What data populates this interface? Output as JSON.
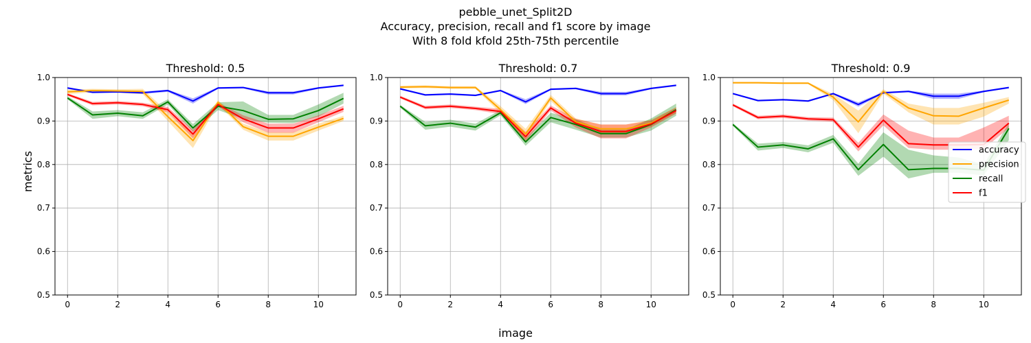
{
  "figure": {
    "title_lines": [
      "pebble_unet_Split2D",
      "Accuracy, precision, recall and f1 score by image",
      "With 8 fold kfold 25th-75th percentile"
    ],
    "xlabel": "image",
    "ylabel": "metrics"
  },
  "colors": {
    "accuracy": "#0000ff",
    "precision": "#ffa500",
    "recall": "#008000",
    "f1": "#ff0000",
    "grid": "#b0b0b0"
  },
  "legend": {
    "placement": "right, on third panel",
    "entries": [
      "accuracy",
      "precision",
      "recall",
      "f1"
    ]
  },
  "chart_data": [
    {
      "type": "line",
      "title": "Threshold: 0.5",
      "x": [
        0,
        1,
        2,
        3,
        4,
        5,
        6,
        7,
        8,
        9,
        10,
        11
      ],
      "xticks": [
        0,
        2,
        4,
        6,
        8,
        10
      ],
      "yticks": [
        0.5,
        0.6,
        0.7,
        0.8,
        0.9,
        1.0
      ],
      "xlim": [
        -0.5,
        11.5
      ],
      "ylim": [
        0.5,
        1.0
      ],
      "grid": true,
      "series": [
        {
          "name": "accuracy",
          "values": [
            0.976,
            0.966,
            0.967,
            0.965,
            0.97,
            0.946,
            0.976,
            0.977,
            0.965,
            0.965,
            0.976,
            0.982
          ],
          "lower": [
            0.974,
            0.964,
            0.965,
            0.962,
            0.967,
            0.94,
            0.974,
            0.975,
            0.961,
            0.961,
            0.974,
            0.98
          ],
          "upper": [
            0.978,
            0.968,
            0.969,
            0.968,
            0.972,
            0.952,
            0.978,
            0.979,
            0.968,
            0.968,
            0.978,
            0.984
          ]
        },
        {
          "name": "precision",
          "values": [
            0.967,
            0.97,
            0.969,
            0.968,
            0.91,
            0.855,
            0.943,
            0.887,
            0.865,
            0.865,
            0.886,
            0.906
          ],
          "lower": [
            0.962,
            0.966,
            0.965,
            0.962,
            0.9,
            0.838,
            0.938,
            0.88,
            0.855,
            0.855,
            0.878,
            0.9
          ],
          "upper": [
            0.972,
            0.974,
            0.973,
            0.974,
            0.92,
            0.87,
            0.948,
            0.894,
            0.874,
            0.874,
            0.894,
            0.912
          ]
        },
        {
          "name": "recall",
          "values": [
            0.953,
            0.914,
            0.918,
            0.912,
            0.944,
            0.884,
            0.934,
            0.924,
            0.904,
            0.905,
            0.924,
            0.952
          ],
          "lower": [
            0.95,
            0.905,
            0.911,
            0.905,
            0.938,
            0.875,
            0.925,
            0.905,
            0.896,
            0.895,
            0.91,
            0.94
          ],
          "upper": [
            0.957,
            0.922,
            0.925,
            0.92,
            0.95,
            0.893,
            0.943,
            0.945,
            0.914,
            0.914,
            0.938,
            0.965
          ]
        },
        {
          "name": "f1",
          "values": [
            0.961,
            0.94,
            0.942,
            0.938,
            0.926,
            0.87,
            0.938,
            0.905,
            0.884,
            0.884,
            0.905,
            0.928
          ],
          "lower": [
            0.958,
            0.936,
            0.938,
            0.934,
            0.92,
            0.86,
            0.933,
            0.897,
            0.873,
            0.873,
            0.897,
            0.921
          ],
          "upper": [
            0.964,
            0.944,
            0.946,
            0.942,
            0.932,
            0.88,
            0.943,
            0.913,
            0.894,
            0.894,
            0.913,
            0.935
          ]
        }
      ]
    },
    {
      "type": "line",
      "title": "Threshold: 0.7",
      "x": [
        0,
        1,
        2,
        3,
        4,
        5,
        6,
        7,
        8,
        9,
        10,
        11
      ],
      "xticks": [
        0,
        2,
        4,
        6,
        8,
        10
      ],
      "yticks": [
        0.5,
        0.6,
        0.7,
        0.8,
        0.9,
        1.0
      ],
      "xlim": [
        -0.5,
        11.5
      ],
      "ylim": [
        0.5,
        1.0
      ],
      "grid": true,
      "series": [
        {
          "name": "accuracy",
          "values": [
            0.974,
            0.96,
            0.962,
            0.959,
            0.97,
            0.944,
            0.973,
            0.975,
            0.963,
            0.963,
            0.975,
            0.982
          ],
          "lower": [
            0.972,
            0.958,
            0.96,
            0.957,
            0.968,
            0.939,
            0.971,
            0.973,
            0.959,
            0.959,
            0.973,
            0.98
          ],
          "upper": [
            0.976,
            0.962,
            0.964,
            0.961,
            0.972,
            0.95,
            0.975,
            0.977,
            0.967,
            0.967,
            0.977,
            0.984
          ]
        },
        {
          "name": "precision",
          "values": [
            0.978,
            0.979,
            0.977,
            0.977,
            0.926,
            0.87,
            0.953,
            0.898,
            0.882,
            0.882,
            0.895,
            0.925
          ],
          "lower": [
            0.975,
            0.976,
            0.974,
            0.974,
            0.918,
            0.858,
            0.946,
            0.89,
            0.872,
            0.872,
            0.887,
            0.918
          ],
          "upper": [
            0.981,
            0.982,
            0.98,
            0.98,
            0.934,
            0.882,
            0.96,
            0.906,
            0.892,
            0.892,
            0.903,
            0.932
          ]
        },
        {
          "name": "recall",
          "values": [
            0.934,
            0.889,
            0.895,
            0.886,
            0.919,
            0.852,
            0.908,
            0.892,
            0.871,
            0.871,
            0.892,
            0.926
          ],
          "lower": [
            0.931,
            0.88,
            0.887,
            0.878,
            0.913,
            0.843,
            0.897,
            0.88,
            0.862,
            0.862,
            0.878,
            0.912
          ],
          "upper": [
            0.937,
            0.898,
            0.903,
            0.894,
            0.925,
            0.861,
            0.919,
            0.904,
            0.88,
            0.88,
            0.906,
            0.94
          ]
        },
        {
          "name": "f1",
          "values": [
            0.955,
            0.931,
            0.934,
            0.929,
            0.922,
            0.864,
            0.93,
            0.895,
            0.876,
            0.876,
            0.893,
            0.924
          ],
          "lower": [
            0.952,
            0.927,
            0.93,
            0.925,
            0.916,
            0.853,
            0.924,
            0.885,
            0.86,
            0.86,
            0.885,
            0.917
          ],
          "upper": [
            0.958,
            0.935,
            0.938,
            0.933,
            0.928,
            0.875,
            0.936,
            0.905,
            0.892,
            0.892,
            0.901,
            0.931
          ]
        }
      ]
    },
    {
      "type": "line",
      "title": "Threshold: 0.9",
      "x": [
        0,
        1,
        2,
        3,
        4,
        5,
        6,
        7,
        8,
        9,
        10,
        11
      ],
      "xticks": [
        0,
        2,
        4,
        6,
        8,
        10
      ],
      "yticks": [
        0.5,
        0.6,
        0.7,
        0.8,
        0.9,
        1.0
      ],
      "xlim": [
        -0.5,
        11.5
      ],
      "ylim": [
        0.5,
        1.0
      ],
      "grid": true,
      "series": [
        {
          "name": "accuracy",
          "values": [
            0.963,
            0.947,
            0.949,
            0.946,
            0.963,
            0.938,
            0.965,
            0.968,
            0.957,
            0.957,
            0.968,
            0.977
          ],
          "lower": [
            0.961,
            0.945,
            0.947,
            0.944,
            0.961,
            0.933,
            0.963,
            0.966,
            0.951,
            0.951,
            0.966,
            0.975
          ],
          "upper": [
            0.965,
            0.949,
            0.951,
            0.948,
            0.965,
            0.943,
            0.967,
            0.97,
            0.963,
            0.963,
            0.97,
            0.979
          ]
        },
        {
          "name": "precision",
          "values": [
            0.988,
            0.988,
            0.987,
            0.987,
            0.955,
            0.898,
            0.968,
            0.93,
            0.912,
            0.911,
            0.93,
            0.948
          ],
          "lower": [
            0.986,
            0.986,
            0.985,
            0.985,
            0.948,
            0.872,
            0.963,
            0.92,
            0.892,
            0.892,
            0.91,
            0.94
          ],
          "upper": [
            0.99,
            0.99,
            0.989,
            0.989,
            0.962,
            0.924,
            0.973,
            0.94,
            0.93,
            0.93,
            0.942,
            0.955
          ]
        },
        {
          "name": "recall",
          "values": [
            0.892,
            0.84,
            0.845,
            0.836,
            0.859,
            0.788,
            0.846,
            0.788,
            0.791,
            0.791,
            0.787,
            0.883
          ],
          "lower": [
            0.889,
            0.832,
            0.838,
            0.828,
            0.85,
            0.774,
            0.818,
            0.768,
            0.781,
            0.781,
            0.775,
            0.856
          ],
          "upper": [
            0.895,
            0.848,
            0.852,
            0.844,
            0.868,
            0.802,
            0.874,
            0.834,
            0.821,
            0.816,
            0.8,
            0.895
          ]
        },
        {
          "name": "f1",
          "values": [
            0.937,
            0.908,
            0.911,
            0.905,
            0.903,
            0.84,
            0.902,
            0.848,
            0.845,
            0.845,
            0.846,
            0.895
          ],
          "lower": [
            0.934,
            0.904,
            0.907,
            0.901,
            0.898,
            0.83,
            0.89,
            0.838,
            0.834,
            0.834,
            0.836,
            0.884
          ],
          "upper": [
            0.94,
            0.912,
            0.915,
            0.909,
            0.908,
            0.85,
            0.915,
            0.878,
            0.862,
            0.862,
            0.885,
            0.912
          ]
        }
      ]
    }
  ]
}
